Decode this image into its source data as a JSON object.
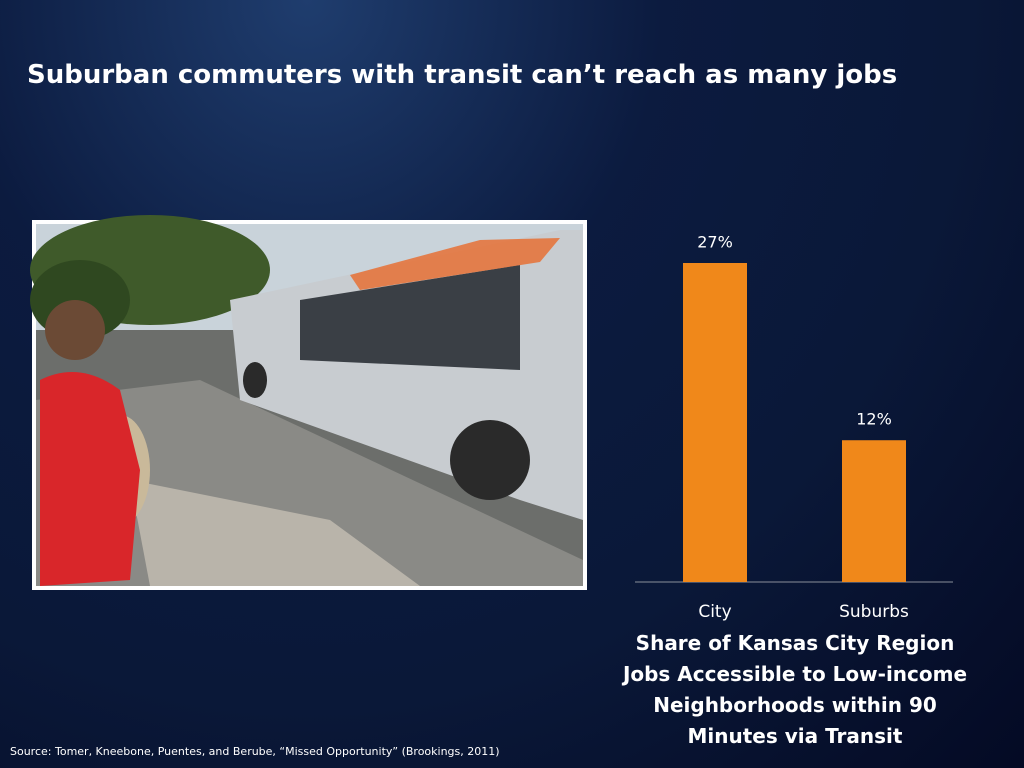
{
  "title": "Suburban commuters with transit can’t reach as many jobs",
  "source": "Source:  Tomer, Kneebone, Puentes, and Berube, “Missed Opportunity” (Brookings, 2011)",
  "chart_data": {
    "type": "bar",
    "caption": "Share of Kansas City Region Jobs Accessible to Low-income Neighborhoods within 90 Minutes via Transit",
    "categories": [
      "City",
      "Suburbs"
    ],
    "values": [
      27,
      12
    ],
    "value_labels": [
      "27%",
      "12%"
    ],
    "color": "#f0881a"
  }
}
